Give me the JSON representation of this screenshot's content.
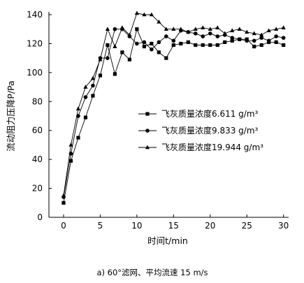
{
  "chart_data": {
    "type": "line",
    "x": [
      0,
      1,
      2,
      3,
      4,
      5,
      6,
      7,
      8,
      9,
      10,
      11,
      12,
      13,
      14,
      15,
      16,
      17,
      18,
      19,
      20,
      21,
      22,
      23,
      24,
      25,
      26,
      27,
      28,
      29,
      30
    ],
    "series": [
      {
        "name": "飞灰质量浓度6.611 g/m³",
        "marker": "square",
        "values": [
          10,
          39,
          55,
          69,
          84,
          98,
          119,
          99,
          114,
          109,
          130,
          118,
          120,
          114,
          110,
          119,
          120,
          121,
          119,
          119,
          119,
          119,
          121,
          122,
          123,
          123,
          118,
          119,
          121,
          121,
          119
        ]
      },
      {
        "name": "飞灰质量浓度9.833 g/m³",
        "marker": "circle",
        "values": [
          14,
          44,
          70,
          83,
          91,
          110,
          110,
          130,
          130,
          125,
          120,
          121,
          116,
          121,
          125,
          122,
          129,
          128,
          127,
          125,
          127,
          125,
          126,
          124,
          123,
          122,
          122,
          124,
          122,
          125,
          124
        ]
      },
      {
        "name": "飞灰质量浓度19.944 g/m³",
        "marker": "triangle",
        "values": [
          15,
          50,
          75,
          90,
          96,
          109,
          130,
          118,
          131,
          126,
          141,
          140,
          140,
          135,
          130,
          130,
          130,
          128,
          130,
          131,
          130,
          131,
          127,
          129,
          130,
          128,
          127,
          126,
          129,
          130,
          131
        ]
      }
    ],
    "xlabel": "时间t/min",
    "ylabel": "流动阻力压降P/Pa",
    "xticks": [
      0,
      5,
      10,
      15,
      20,
      25,
      30
    ],
    "yticks": [
      0,
      20,
      40,
      60,
      80,
      100,
      120,
      140
    ],
    "xlim": [
      -2,
      30.7
    ],
    "ylim": [
      0,
      140
    ],
    "grid": false,
    "legend": "center-right",
    "line_color": "#000000"
  },
  "caption": "a)  60°滤网、平均流速 15 m/s"
}
